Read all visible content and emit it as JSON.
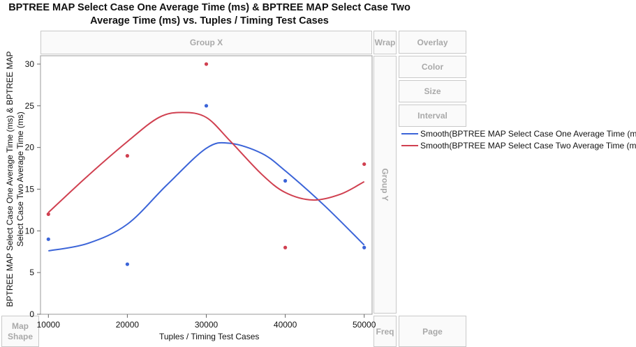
{
  "chart_data": {
    "type": "scatter",
    "title": "BPTREE MAP Select Case One Average Time (ms) & BPTREE MAP Select Case Two Average Time (ms) vs. Tuples / Timing Test Cases",
    "title_lines": [
      "BPTREE MAP Select Case One Average Time (ms) & BPTREE MAP Select Case Two",
      "Average Time (ms) vs. Tuples / Timing Test Cases"
    ],
    "xlabel": "Tuples / Timing Test Cases",
    "ylabel": "BPTREE MAP Select Case One Average Time (ms) & BPTREE MAP Select Case Two Average Time (ms)",
    "ylabel_lines": [
      "BPTREE MAP Select Case One Average Time (ms) & BPTREE MAP",
      "Select Case Two Average Time (ms)"
    ],
    "xlim": [
      9000,
      51000
    ],
    "ylim": [
      0,
      31
    ],
    "x_ticks": [
      10000,
      20000,
      30000,
      40000,
      50000
    ],
    "y_ticks": [
      0,
      5,
      10,
      15,
      20,
      25,
      30
    ],
    "grid": false,
    "legend_position": "right",
    "series": [
      {
        "name": "BPTREE MAP Select Case One Average Time (ms)",
        "color": "#3b64d8",
        "x": [
          10000,
          20000,
          30000,
          40000,
          50000
        ],
        "y": [
          9,
          6,
          25,
          16,
          8
        ],
        "smooth": [
          [
            10000,
            7.6
          ],
          [
            15000,
            8.5
          ],
          [
            20000,
            10.8
          ],
          [
            25000,
            15.5
          ],
          [
            30000,
            19.9
          ],
          [
            33000,
            20.5
          ],
          [
            37000,
            19.3
          ],
          [
            40000,
            17.2
          ],
          [
            45000,
            13
          ],
          [
            50000,
            8.3
          ]
        ]
      },
      {
        "name": "BPTREE MAP Select Case Two Average Time (ms)",
        "color": "#d04050",
        "x": [
          10000,
          20000,
          30000,
          40000,
          50000
        ],
        "y": [
          12,
          19,
          30,
          8,
          18
        ],
        "smooth": [
          [
            10000,
            12.2
          ],
          [
            15000,
            16.6
          ],
          [
            20000,
            20.7
          ],
          [
            24000,
            23.6
          ],
          [
            27000,
            24.2
          ],
          [
            30000,
            23.6
          ],
          [
            33000,
            20.8
          ],
          [
            37000,
            16.8
          ],
          [
            40000,
            14.6
          ],
          [
            43500,
            13.7
          ],
          [
            47000,
            14.4
          ],
          [
            50000,
            15.9
          ]
        ]
      }
    ],
    "legend": [
      "Smooth(BPTREE MAP Select Case One Average Time (ms))",
      "Smooth(BPTREE MAP Select Case Two Average Time (ms))"
    ]
  },
  "zones": {
    "group_x": "Group X",
    "group_y": "Group Y",
    "wrap": "Wrap",
    "overlay": "Overlay",
    "color": "Color",
    "size": "Size",
    "interval": "Interval",
    "map_shape": "Map Shape",
    "freq": "Freq",
    "page": "Page"
  }
}
